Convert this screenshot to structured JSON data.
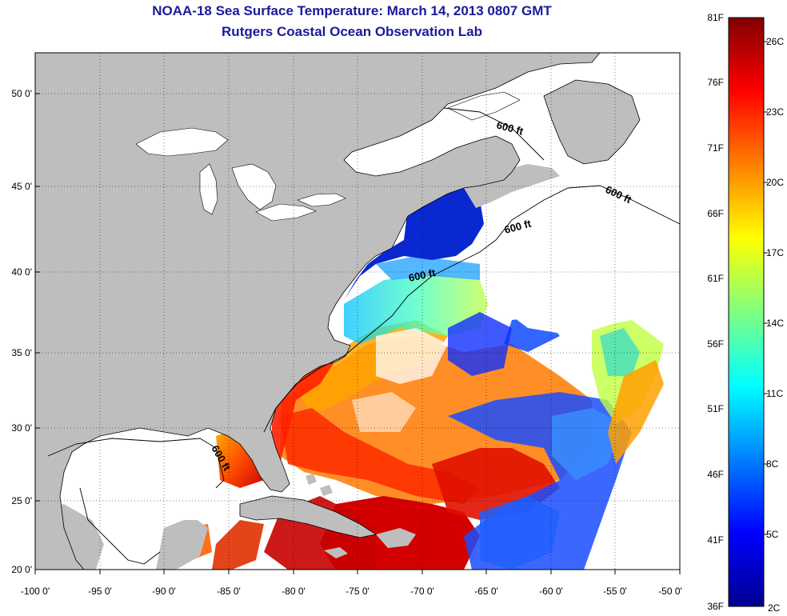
{
  "header": {
    "title": "NOAA-18 Sea Surface Temperature:  March 14, 2013 0807 GMT",
    "subtitle": "Rutgers Coastal Ocean Observation Lab"
  },
  "axes": {
    "lat_ticks": [
      "50 0'",
      "45 0'",
      "40 0'",
      "35 0'",
      "30 0'",
      "25 0'",
      "20 0'"
    ],
    "lon_ticks": [
      "-100 0'",
      "-95 0'",
      "-90 0'",
      "-85 0'",
      "-80 0'",
      "-75 0'",
      "-70 0'",
      "-65 0'",
      "-60 0'",
      "-55 0'",
      "-50 0'"
    ]
  },
  "depth_labels": [
    "600 ft",
    "600 ft",
    "600 ft",
    "600 ft",
    "600 ft"
  ],
  "colorbar": {
    "fahrenheit": [
      "81F",
      "76F",
      "71F",
      "66F",
      "61F",
      "56F",
      "51F",
      "46F",
      "41F",
      "36F"
    ],
    "celsius": [
      "26C",
      "23C",
      "20C",
      "17C",
      "14C",
      "11C",
      "8C",
      "5C",
      "2C"
    ],
    "range_f": [
      36,
      81
    ],
    "range_c": [
      2,
      27
    ],
    "colors": [
      "#00008f",
      "#0000ff",
      "#0080ff",
      "#00ffff",
      "#80ff80",
      "#ffff00",
      "#ff8000",
      "#ff0000",
      "#800000"
    ]
  },
  "map_colors": {
    "land": "#bebebe",
    "no_data": "#ffffff",
    "coast": "#000000",
    "grid": "#000000"
  }
}
